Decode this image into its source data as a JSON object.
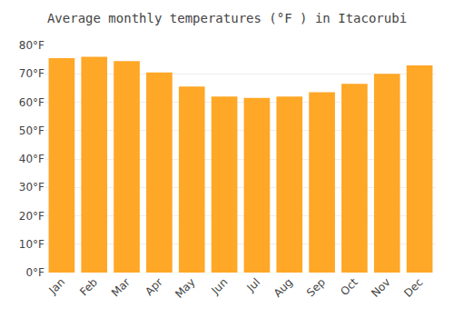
{
  "chart_data": {
    "type": "bar",
    "title": "Average monthly temperatures (°F ) in Itacorubi",
    "categories": [
      "Jan",
      "Feb",
      "Mar",
      "Apr",
      "May",
      "Jun",
      "Jul",
      "Aug",
      "Sep",
      "Oct",
      "Nov",
      "Dec"
    ],
    "values": [
      75.5,
      76.0,
      74.5,
      70.5,
      65.5,
      62.0,
      61.5,
      62.0,
      63.5,
      66.5,
      70.0,
      73.0
    ],
    "color": "#FFA726",
    "ylim": [
      0,
      80
    ],
    "yticks": [
      {
        "value": 0,
        "label": "0°F"
      },
      {
        "value": 10,
        "label": "10°F"
      },
      {
        "value": 20,
        "label": "20°F"
      },
      {
        "value": 30,
        "label": "30°F"
      },
      {
        "value": 40,
        "label": "40°F"
      },
      {
        "value": 50,
        "label": "50°F"
      },
      {
        "value": 60,
        "label": "60°F"
      },
      {
        "value": 70,
        "label": "70°F"
      },
      {
        "value": 80,
        "label": "80°F"
      }
    ],
    "grid": true
  }
}
